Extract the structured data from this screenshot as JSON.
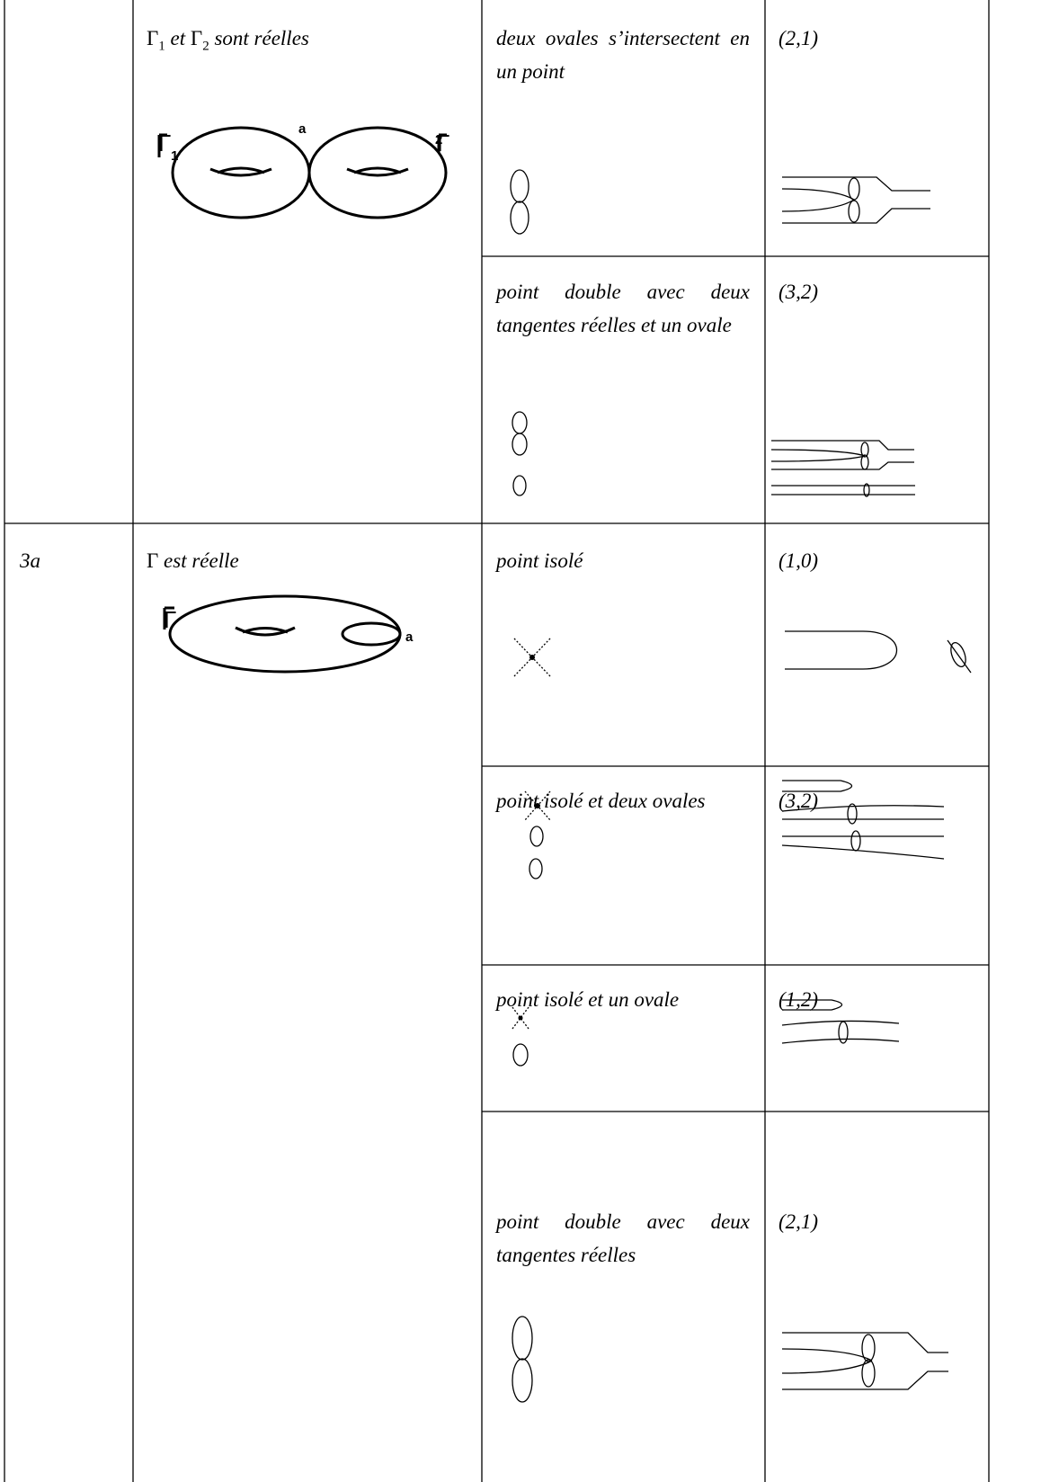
{
  "table": {
    "rows": [
      {
        "surface": {
          "parts": [
            "Γ",
            "1",
            " et ",
            "Γ",
            "2",
            " sont réelles"
          ]
        },
        "figure_labels": [
          "Γ",
          "1",
          "a",
          "Γ",
          "2"
        ],
        "cases": [
          {
            "description": "deux ovales s’inter­sectent en un point",
            "pair": "(2,1)"
          },
          {
            "description": "point double avec deux tangentes réelles et un ovale",
            "pair": "(3,2)"
          }
        ]
      },
      {
        "case": "3a",
        "surface": {
          "parts": [
            "Γ",
            " est réelle"
          ]
        },
        "figure_labels": [
          "Γ",
          "a"
        ],
        "cases": [
          {
            "description": "point isolé",
            "pair": "(1,0)"
          },
          {
            "description": "point isolé et deux ovales",
            "pair": "(3,2)"
          },
          {
            "description": "point isolé et un ovale",
            "pair": "(1,2)"
          },
          {
            "description": "point double avec deux tangentes réelles",
            "pair": "(2,1)"
          }
        ]
      }
    ]
  }
}
